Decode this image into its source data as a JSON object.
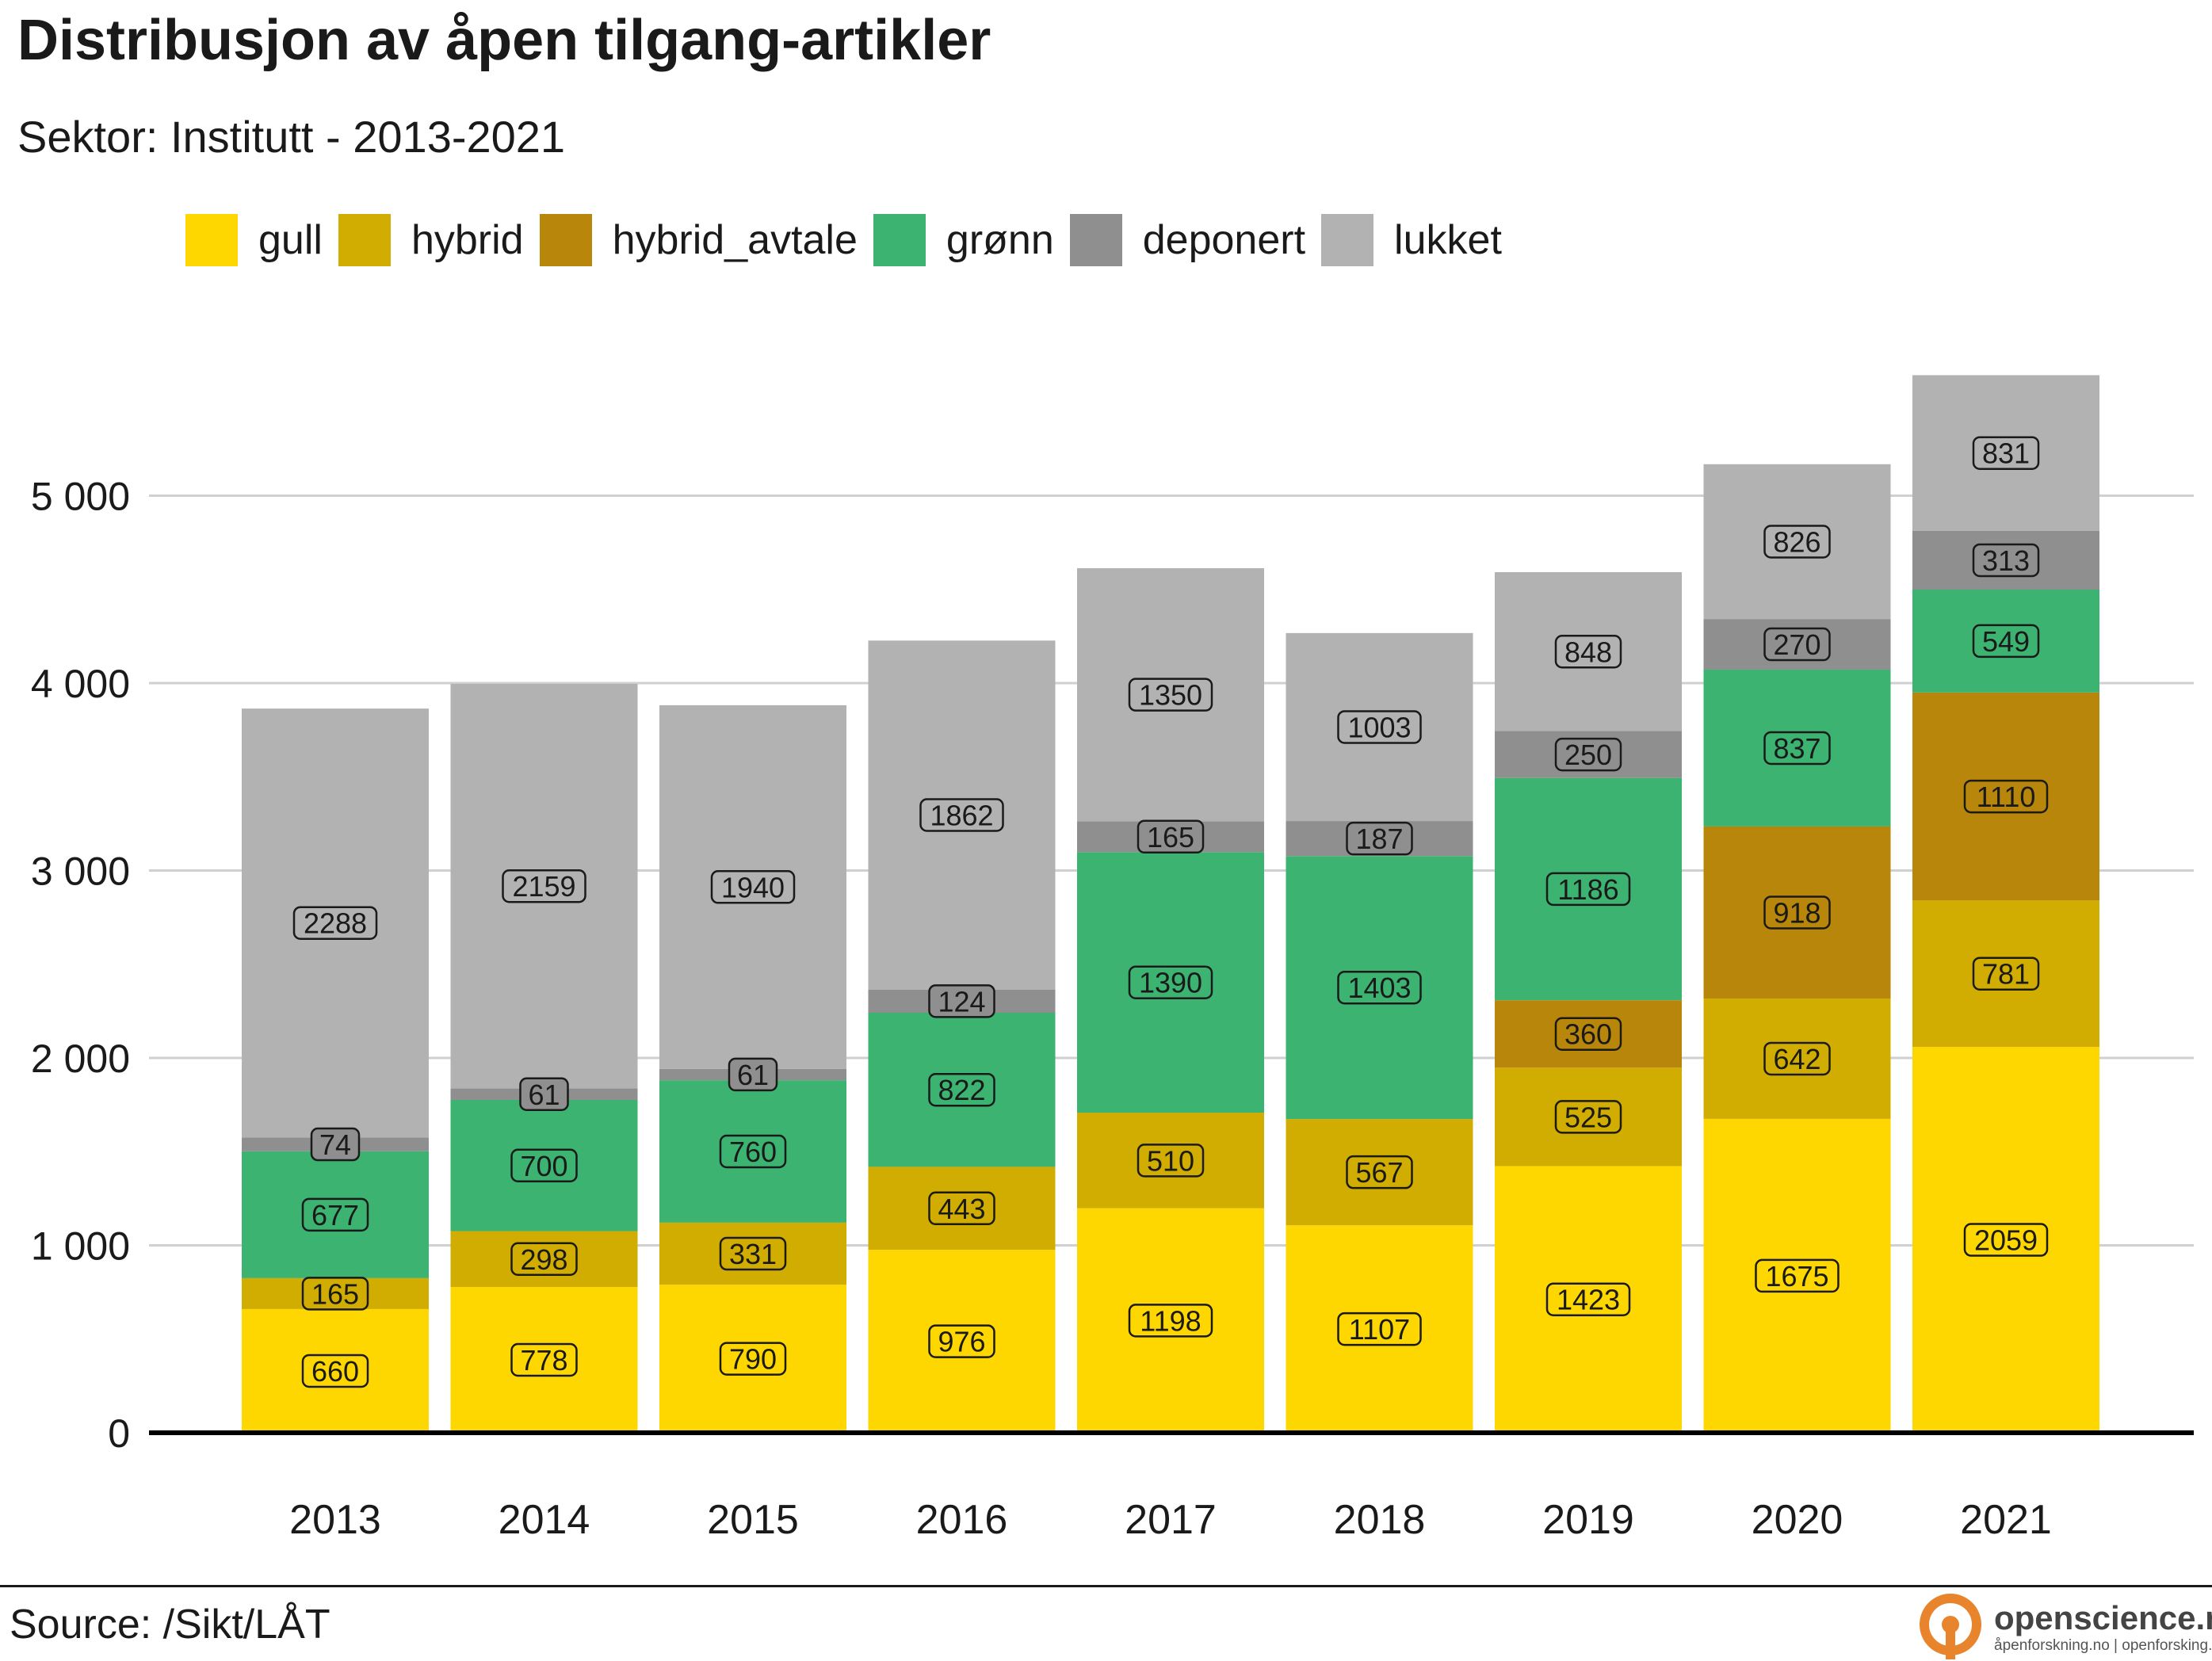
{
  "title": "Distribusjon av åpen tilgang-artikler",
  "subtitle": "Sektor: Institutt - 2013-2021",
  "source": "Source: /Sikt/LÅT",
  "logo": {
    "name": "openscience.no",
    "tagline": "åpenforskning.no | openforsking.no",
    "color": "#e8842c"
  },
  "colors": {
    "gull": "#FFD700",
    "hybrid": "#D0AD00",
    "hybrid_avtale": "#B8860B",
    "grønn": "#3CB371",
    "deponert": "#8F8F8F",
    "lukket": "#B2B2B2"
  },
  "chart_data": {
    "type": "bar",
    "stacked": true,
    "title": "Distribusjon av åpen tilgang-artikler",
    "subtitle": "Sektor: Institutt - 2013-2021",
    "xlabel": "",
    "ylabel": "",
    "categories": [
      "2013",
      "2014",
      "2015",
      "2016",
      "2017",
      "2018",
      "2019",
      "2020",
      "2021"
    ],
    "series": [
      {
        "name": "gull",
        "values": [
          660,
          778,
          790,
          976,
          1198,
          1107,
          1423,
          1675,
          2059
        ]
      },
      {
        "name": "hybrid",
        "values": [
          165,
          298,
          331,
          443,
          510,
          567,
          525,
          642,
          781
        ]
      },
      {
        "name": "hybrid_avtale",
        "values": [
          null,
          null,
          null,
          null,
          null,
          null,
          360,
          918,
          1110
        ]
      },
      {
        "name": "grønn",
        "values": [
          677,
          700,
          760,
          822,
          1390,
          1403,
          1186,
          837,
          549
        ]
      },
      {
        "name": "deponert",
        "values": [
          74,
          61,
          61,
          124,
          165,
          187,
          250,
          270,
          313
        ]
      },
      {
        "name": "lukket",
        "values": [
          2288,
          2159,
          1940,
          1862,
          1350,
          1003,
          848,
          826,
          831
        ]
      }
    ],
    "ylim": [
      0,
      5650
    ],
    "yticks": [
      0,
      1000,
      2000,
      3000,
      4000,
      5000
    ],
    "ytick_labels": [
      "0",
      "1 000",
      "2 000",
      "3 000",
      "4 000",
      "5 000"
    ],
    "grid": true,
    "legend_position": "top"
  }
}
